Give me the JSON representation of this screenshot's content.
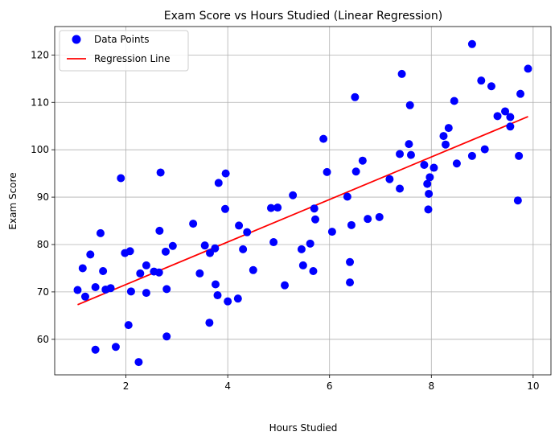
{
  "chart_data": {
    "type": "scatter",
    "title": "Exam Score vs Hours Studied (Linear Regression)",
    "xlabel": "Hours Studied",
    "ylabel": "Exam Score",
    "xlim": [
      0.6,
      10.35
    ],
    "ylim": [
      52.5,
      126
    ],
    "xticks": [
      2,
      4,
      6,
      8,
      10
    ],
    "yticks": [
      60,
      70,
      80,
      90,
      100,
      110,
      120
    ],
    "grid": true,
    "legend_position": "top-left",
    "colors": {
      "points": "#0000ff",
      "line": "#ff0000",
      "grid": "#b0b0b0"
    },
    "series": [
      {
        "name": "Data Points",
        "kind": "scatter",
        "points": [
          [
            1.05,
            70.4
          ],
          [
            1.15,
            75.0
          ],
          [
            1.2,
            69.0
          ],
          [
            1.3,
            77.9
          ],
          [
            1.4,
            57.8
          ],
          [
            1.4,
            71.0
          ],
          [
            1.5,
            82.4
          ],
          [
            1.55,
            74.4
          ],
          [
            1.6,
            70.5
          ],
          [
            1.7,
            70.8
          ],
          [
            1.8,
            58.4
          ],
          [
            1.9,
            94.0
          ],
          [
            1.98,
            78.2
          ],
          [
            2.05,
            63.0
          ],
          [
            2.08,
            78.6
          ],
          [
            2.1,
            70.1
          ],
          [
            2.25,
            55.2
          ],
          [
            2.28,
            73.9
          ],
          [
            2.4,
            75.6
          ],
          [
            2.4,
            69.8
          ],
          [
            2.55,
            74.3
          ],
          [
            2.65,
            74.1
          ],
          [
            2.66,
            82.9
          ],
          [
            2.68,
            95.2
          ],
          [
            2.78,
            78.5
          ],
          [
            2.8,
            70.6
          ],
          [
            2.8,
            60.6
          ],
          [
            2.92,
            79.7
          ],
          [
            3.32,
            84.4
          ],
          [
            3.45,
            73.9
          ],
          [
            3.55,
            79.8
          ],
          [
            3.64,
            63.5
          ],
          [
            3.65,
            78.2
          ],
          [
            3.75,
            79.2
          ],
          [
            3.76,
            71.6
          ],
          [
            3.8,
            69.3
          ],
          [
            3.82,
            93.0
          ],
          [
            3.95,
            87.5
          ],
          [
            3.96,
            95.0
          ],
          [
            4.0,
            68.0
          ],
          [
            4.2,
            68.6
          ],
          [
            4.22,
            84.0
          ],
          [
            4.3,
            79.0
          ],
          [
            4.38,
            82.6
          ],
          [
            4.5,
            74.6
          ],
          [
            4.85,
            87.7
          ],
          [
            4.9,
            80.5
          ],
          [
            4.98,
            87.8
          ],
          [
            5.12,
            71.4
          ],
          [
            5.28,
            90.4
          ],
          [
            5.45,
            79.0
          ],
          [
            5.48,
            75.6
          ],
          [
            5.62,
            80.2
          ],
          [
            5.68,
            74.4
          ],
          [
            5.7,
            87.6
          ],
          [
            5.72,
            85.3
          ],
          [
            5.88,
            102.3
          ],
          [
            5.95,
            95.3
          ],
          [
            6.05,
            82.7
          ],
          [
            6.35,
            90.1
          ],
          [
            6.4,
            76.3
          ],
          [
            6.4,
            72.0
          ],
          [
            6.43,
            84.1
          ],
          [
            6.5,
            111.1
          ],
          [
            6.52,
            95.4
          ],
          [
            6.65,
            97.7
          ],
          [
            6.75,
            85.4
          ],
          [
            6.98,
            85.8
          ],
          [
            7.18,
            93.8
          ],
          [
            7.38,
            91.8
          ],
          [
            7.38,
            99.1
          ],
          [
            7.42,
            116.0
          ],
          [
            7.56,
            101.2
          ],
          [
            7.58,
            109.4
          ],
          [
            7.6,
            98.9
          ],
          [
            7.86,
            96.8
          ],
          [
            7.92,
            92.8
          ],
          [
            7.94,
            87.4
          ],
          [
            7.95,
            90.7
          ],
          [
            7.97,
            94.2
          ],
          [
            8.05,
            96.2
          ],
          [
            8.24,
            102.9
          ],
          [
            8.28,
            101.1
          ],
          [
            8.34,
            104.6
          ],
          [
            8.45,
            110.3
          ],
          [
            8.5,
            97.1
          ],
          [
            8.8,
            122.3
          ],
          [
            8.8,
            98.7
          ],
          [
            8.98,
            114.6
          ],
          [
            9.05,
            100.1
          ],
          [
            9.18,
            113.4
          ],
          [
            9.3,
            107.1
          ],
          [
            9.45,
            108.1
          ],
          [
            9.55,
            104.9
          ],
          [
            9.55,
            106.9
          ],
          [
            9.7,
            89.3
          ],
          [
            9.72,
            98.7
          ],
          [
            9.75,
            111.8
          ],
          [
            9.9,
            117.1
          ]
        ]
      },
      {
        "name": "Regression Line",
        "kind": "line",
        "x": [
          1.05,
          9.9
        ],
        "y": [
          67.3,
          107.0
        ]
      }
    ]
  }
}
